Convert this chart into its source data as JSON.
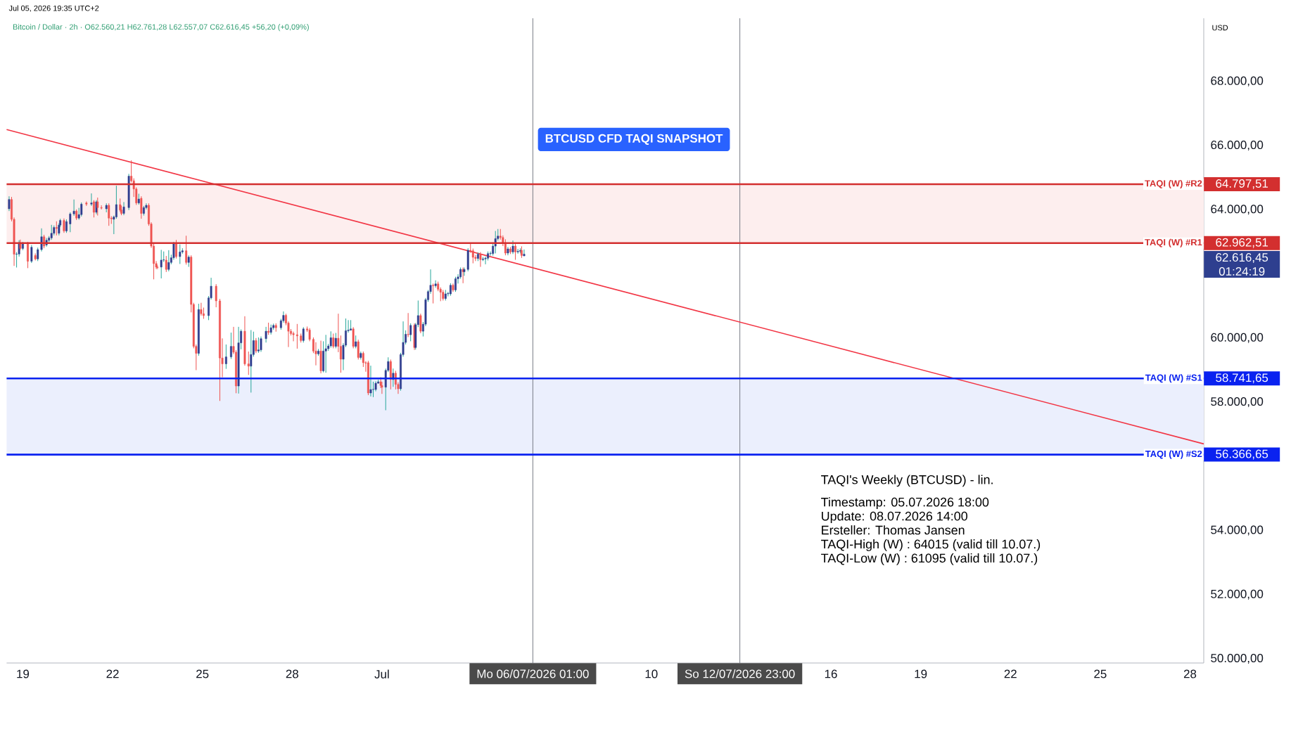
{
  "chart_data": {
    "type": "candlestick",
    "title": "Jul 05, 2026 19:35 UTC+2",
    "subtitle": "Bitcoin / Dollar · 2h · O62.560,21 H62.761,28 L62.557,07 C62.616,45 +56,20 (+0,09%)",
    "ylabel": "USD",
    "xlim": [
      "2026-06-18T11:00",
      "2026-07-28T11:00"
    ],
    "xticks": [
      {
        "value": "2026-06-19",
        "label": "19"
      },
      {
        "value": "2026-06-22",
        "label": "22"
      },
      {
        "value": "2026-06-25",
        "label": "25"
      },
      {
        "value": "2026-06-28",
        "label": "28"
      },
      {
        "value": "2026-07-01",
        "label": "Jul"
      },
      {
        "value": "2026-07-10",
        "label": "10"
      },
      {
        "value": "2026-07-16",
        "label": "16"
      },
      {
        "value": "2026-07-19",
        "label": "19"
      },
      {
        "value": "2026-07-22",
        "label": "22"
      },
      {
        "value": "2026-07-25",
        "label": "25"
      },
      {
        "value": "2026-07-28",
        "label": "28"
      }
    ],
    "ylim": [
      49870,
      69970
    ],
    "yticks": [
      {
        "value": 50000,
        "label": "50.000,00"
      },
      {
        "value": 52000,
        "label": "52.000,00"
      },
      {
        "value": 54000,
        "label": "54.000,00"
      },
      {
        "value": 58000,
        "label": "58.000,00"
      },
      {
        "value": 60000,
        "label": "60.000,00"
      },
      {
        "value": 64000,
        "label": "64.000,00"
      },
      {
        "value": 66000,
        "label": "66.000,00"
      },
      {
        "value": 68000,
        "label": "68.000,00"
      }
    ],
    "x": [
      "2026-06-18T13:00",
      "2026-06-18T15:00",
      "2026-06-18T17:00",
      "2026-06-18T19:00",
      "2026-06-18T21:00",
      "2026-06-18T22:00",
      "2026-06-19T00:00",
      "2026-06-19T04:00",
      "2026-06-19T07:00",
      "2026-06-19T10:00",
      "2026-06-19T12:00",
      "2026-06-19T15:00",
      "2026-06-19T17:00",
      "2026-06-19T19:00",
      "2026-06-19T21:00",
      "2026-06-19T23:00",
      "2026-06-20T01:00",
      "2026-06-20T03:00",
      "2026-06-20T05:00",
      "2026-06-20T06:00",
      "2026-06-20T09:00",
      "2026-06-20T11:00",
      "2026-06-20T14:00",
      "2026-06-20T17:00",
      "2026-06-20T19:00",
      "2026-06-20T21:00",
      "2026-06-20T23:00",
      "2026-06-21T03:00",
      "2026-06-21T07:00",
      "2026-06-21T09:00",
      "2026-06-21T11:00",
      "2026-06-21T12:00",
      "2026-06-21T15:00",
      "2026-06-21T19:00",
      "2026-06-21T21:00",
      "2026-06-21T23:00",
      "2026-06-22T01:00",
      "2026-06-22T03:00",
      "2026-06-22T06:00",
      "2026-06-22T07:00",
      "2026-06-22T09:00",
      "2026-06-22T13:00",
      "2026-06-22T15:00",
      "2026-06-22T17:00",
      "2026-06-22T19:00",
      "2026-06-22T21:00",
      "2026-06-22T23:00",
      "2026-06-23T01:00",
      "2026-06-23T03:00",
      "2026-06-23T05:00",
      "2026-06-23T07:00",
      "2026-06-23T09:00",
      "2026-06-23T11:00",
      "2026-06-23T12:00",
      "2026-06-23T15:00",
      "2026-06-23T17:00",
      "2026-06-23T19:00",
      "2026-06-23T21:00",
      "2026-06-23T23:00",
      "2026-06-24T01:00",
      "2026-06-24T03:00",
      "2026-06-24T06:00",
      "2026-06-24T08:00",
      "2026-06-24T11:00",
      "2026-06-24T13:00",
      "2026-06-24T15:00",
      "2026-06-24T17:00",
      "2026-06-24T19:00",
      "2026-06-24T21:00",
      "2026-06-24T23:00",
      "2026-06-25T01:00",
      "2026-06-25T05:00",
      "2026-06-25T07:00",
      "2026-06-25T11:00",
      "2026-06-25T14:00",
      "2026-06-25T16:00",
      "2026-06-25T19:00",
      "2026-06-25T23:00",
      "2026-06-26T01:00",
      "2026-06-26T03:00",
      "2026-06-26T05:00",
      "2026-06-26T07:00",
      "2026-06-26T10:00",
      "2026-06-26T13:00",
      "2026-06-26T15:00",
      "2026-06-26T17:00",
      "2026-06-26T19:00",
      "2026-06-26T21:00",
      "2026-06-26T23:00",
      "2026-06-27T03:00",
      "2026-06-27T05:00",
      "2026-06-27T07:00",
      "2026-06-27T09:00",
      "2026-06-27T11:00",
      "2026-06-27T15:00",
      "2026-06-27T17:00",
      "2026-06-27T19:00",
      "2026-06-27T21:00",
      "2026-06-27T23:00",
      "2026-06-28T01:00",
      "2026-06-28T04:00",
      "2026-06-28T07:00",
      "2026-06-28T09:00",
      "2026-06-28T12:00",
      "2026-06-28T14:00",
      "2026-06-28T17:00",
      "2026-06-28T19:00",
      "2026-06-28T21:00",
      "2026-06-28T23:00",
      "2026-06-29T01:00",
      "2026-06-29T03:00",
      "2026-06-29T05:00",
      "2026-06-29T07:00",
      "2026-06-29T09:00",
      "2026-06-29T11:00",
      "2026-06-29T13:00",
      "2026-06-29T15:00",
      "2026-06-29T17:00",
      "2026-06-29T19:00",
      "2026-06-29T21:00",
      "2026-06-29T23:00",
      "2026-06-30T01:00",
      "2026-06-30T03:00",
      "2026-06-30T05:00",
      "2026-06-30T07:00",
      "2026-06-30T09:00",
      "2026-06-30T11:00",
      "2026-06-30T13:00",
      "2026-06-30T15:00",
      "2026-06-30T17:00",
      "2026-06-30T19:00",
      "2026-06-30T21:00",
      "2026-06-30T23:00",
      "2026-07-01T00:00",
      "2026-07-01T03:00",
      "2026-07-01T05:00",
      "2026-07-01T07:00",
      "2026-07-01T09:00",
      "2026-07-01T11:00",
      "2026-07-01T13:00",
      "2026-07-01T15:00",
      "2026-07-01T17:00",
      "2026-07-01T19:00",
      "2026-07-01T21:00",
      "2026-07-01T23:00",
      "2026-07-02T02:00",
      "2026-07-02T03:00",
      "2026-07-02T05:00",
      "2026-07-02T07:00",
      "2026-07-02T09:00",
      "2026-07-02T11:00",
      "2026-07-02T13:00",
      "2026-07-02T15:00",
      "2026-07-02T17:00",
      "2026-07-02T19:00",
      "2026-07-02T21:00",
      "2026-07-02T23:00",
      "2026-07-03T01:00",
      "2026-07-03T03:00",
      "2026-07-03T05:00",
      "2026-07-03T07:00",
      "2026-07-03T09:00",
      "2026-07-03T11:00",
      "2026-07-03T13:00",
      "2026-07-03T15:00",
      "2026-07-03T17:00",
      "2026-07-03T18:00",
      "2026-07-03T21:00",
      "2026-07-03T23:00",
      "2026-07-04T01:00",
      "2026-07-04T03:00",
      "2026-07-04T05:00",
      "2026-07-04T07:00",
      "2026-07-04T09:00",
      "2026-07-04T11:00",
      "2026-07-04T13:00",
      "2026-07-04T15:00",
      "2026-07-04T17:00",
      "2026-07-04T19:00",
      "2026-07-04T21:00",
      "2026-07-04T23:00",
      "2026-07-05T01:00",
      "2026-07-05T03:00",
      "2026-07-05T05:00",
      "2026-07-05T07:00",
      "2026-07-05T09:00",
      "2026-07-05T11:00",
      "2026-07-05T13:00",
      "2026-07-05T15:00",
      "2026-07-05T16:00",
      "2026-07-05T18:00"
    ],
    "ohlc": [
      [
        64030,
        64420,
        63960,
        64321
      ],
      [
        64321,
        64400,
        63640,
        63703
      ],
      [
        63703,
        63760,
        62250,
        62613
      ],
      [
        62613,
        62680,
        62200,
        62620
      ],
      [
        62620,
        63050,
        62540,
        62976
      ],
      [
        62976,
        63070,
        62740,
        62794
      ],
      [
        62794,
        63000,
        62740,
        62940
      ],
      [
        62940,
        63000,
        62180,
        62394
      ],
      [
        62394,
        62900,
        62340,
        62831
      ],
      [
        62576,
        62640,
        62420,
        62467
      ],
      [
        62467,
        62820,
        62400,
        62758
      ],
      [
        62758,
        63420,
        62700,
        63158
      ],
      [
        63158,
        63220,
        62800,
        62867
      ],
      [
        62903,
        63120,
        62850,
        63049
      ],
      [
        63049,
        63180,
        62990,
        63122
      ],
      [
        63122,
        63530,
        63060,
        63267
      ],
      [
        63267,
        63510,
        63200,
        63448
      ],
      [
        63448,
        63640,
        63200,
        63420
      ],
      [
        63267,
        63580,
        63200,
        63521
      ],
      [
        63521,
        63720,
        63460,
        63667
      ],
      [
        63667,
        63730,
        63280,
        63339
      ],
      [
        63339,
        63700,
        63280,
        63630
      ],
      [
        63558,
        63920,
        63300,
        63870
      ],
      [
        63870,
        64320,
        63810,
        63958
      ],
      [
        63958,
        64010,
        63680,
        63740
      ],
      [
        63740,
        64060,
        63690,
        63849
      ],
      [
        63849,
        64230,
        63790,
        64176
      ],
      [
        64212,
        64260,
        64120,
        64176
      ],
      [
        64176,
        64510,
        64120,
        64212
      ],
      [
        64248,
        64300,
        63760,
        63921
      ],
      [
        63921,
        64300,
        63860,
        64248
      ],
      [
        64248,
        64380,
        63820,
        64067
      ],
      [
        64067,
        64140,
        64010,
        64050
      ],
      [
        64030,
        64200,
        63920,
        64139
      ],
      [
        64139,
        64200,
        63500,
        63740
      ],
      [
        63740,
        63800,
        63560,
        63720
      ],
      [
        63703,
        63820,
        63240,
        63776
      ],
      [
        63776,
        64750,
        63720,
        64161
      ],
      [
        64161,
        64350,
        63940,
        63994
      ],
      [
        63994,
        64130,
        63830,
        63885
      ],
      [
        63885,
        64240,
        63830,
        64088
      ],
      [
        64067,
        65120,
        63990,
        65048
      ],
      [
        65048,
        65540,
        64850,
        64903
      ],
      [
        64903,
        64980,
        64400,
        64648
      ],
      [
        64648,
        64700,
        64150,
        64212
      ],
      [
        64212,
        64500,
        64160,
        64335
      ],
      [
        64357,
        64420,
        63720,
        63885
      ],
      [
        63885,
        64120,
        63820,
        64067
      ],
      [
        64067,
        64200,
        64010,
        64139
      ],
      [
        64139,
        64200,
        63500,
        63558
      ],
      [
        63558,
        63610,
        62810,
        62867
      ],
      [
        62867,
        62940,
        61830,
        62322
      ],
      [
        62322,
        62400,
        62150,
        62213
      ],
      [
        62213,
        62270,
        62150,
        62200
      ],
      [
        62213,
        62750,
        61860,
        62431
      ],
      [
        62431,
        62700,
        62370,
        62440
      ],
      [
        62431,
        62560,
        62060,
        62140
      ],
      [
        62140,
        62740,
        62080,
        62358
      ],
      [
        62358,
        62600,
        62300,
        62504
      ],
      [
        62504,
        63000,
        62440,
        62940
      ],
      [
        62940,
        63060,
        62480,
        62540
      ],
      [
        62540,
        62920,
        62310,
        62685
      ],
      [
        62685,
        62800,
        62630,
        62722
      ],
      [
        62722,
        63190,
        62290,
        62358
      ],
      [
        62358,
        62580,
        62220,
        62525
      ],
      [
        62525,
        62580,
        60800,
        61049
      ],
      [
        61049,
        61100,
        59680,
        59741
      ],
      [
        59741,
        59800,
        59000,
        59523
      ],
      [
        59523,
        61070,
        59450,
        60890
      ],
      [
        60890,
        61100,
        60700,
        60759
      ],
      [
        60759,
        60950,
        60600,
        60700
      ],
      [
        60700,
        61310,
        60560,
        61253
      ],
      [
        61253,
        61880,
        61200,
        61617
      ],
      [
        61617,
        61680,
        60960,
        61159
      ],
      [
        61159,
        61220,
        58040,
        59378
      ],
      [
        59378,
        59990,
        58780,
        59196
      ],
      [
        59196,
        59800,
        59040,
        59414
      ],
      [
        59414,
        60170,
        59350,
        59741
      ],
      [
        59741,
        60350,
        59500,
        59559
      ],
      [
        59559,
        59620,
        58280,
        58505
      ],
      [
        58505,
        60350,
        58270,
        59850
      ],
      [
        59850,
        60270,
        59650,
        60214
      ],
      [
        60214,
        60680,
        59140,
        59196
      ],
      [
        59196,
        59580,
        58850,
        59124
      ],
      [
        59124,
        60250,
        58300,
        59487
      ],
      [
        59487,
        60200,
        59420,
        59923
      ],
      [
        59923,
        60000,
        59530,
        59596
      ],
      [
        59596,
        60020,
        59540,
        59632
      ],
      [
        59632,
        60050,
        59570,
        59981
      ],
      [
        59981,
        60350,
        59860,
        60214
      ],
      [
        60213,
        60480,
        60100,
        60177
      ],
      [
        60177,
        60420,
        60110,
        60322
      ],
      [
        60322,
        60450,
        60260,
        60395
      ],
      [
        60395,
        60460,
        60200,
        60322
      ],
      [
        60322,
        60600,
        60260,
        60541
      ],
      [
        60541,
        60830,
        60480,
        60708
      ],
      [
        60708,
        60760,
        60400,
        60468
      ],
      [
        60468,
        60520,
        59720,
        60213
      ],
      [
        60213,
        60280,
        60080,
        60141
      ],
      [
        60141,
        60200,
        59900,
        60104
      ],
      [
        60104,
        60440,
        59670,
        60068
      ],
      [
        60068,
        60140,
        59860,
        59923
      ],
      [
        59923,
        60340,
        59860,
        60286
      ],
      [
        60286,
        60360,
        60190,
        60250
      ],
      [
        60250,
        60310,
        59900,
        59959
      ],
      [
        59959,
        60020,
        59530,
        59595
      ],
      [
        59595,
        59870,
        59150,
        59508
      ],
      [
        59508,
        59660,
        59450,
        59595
      ],
      [
        59595,
        59920,
        58900,
        58978
      ],
      [
        58978,
        59900,
        58930,
        59595
      ],
      [
        59595,
        60100,
        58920,
        59668
      ],
      [
        59668,
        59820,
        59600,
        59755
      ],
      [
        59755,
        60210,
        59700,
        60010
      ],
      [
        60010,
        60140,
        59680,
        59741
      ],
      [
        59741,
        60160,
        59680,
        59995
      ],
      [
        59995,
        60760,
        59560,
        59741
      ],
      [
        59741,
        60080,
        58920,
        59341
      ],
      [
        59341,
        59840,
        59000,
        59777
      ],
      [
        59777,
        60610,
        59720,
        60228
      ],
      [
        60228,
        60560,
        60170,
        60250
      ],
      [
        60250,
        60560,
        60230,
        60286
      ],
      [
        60286,
        60340,
        59680,
        59741
      ],
      [
        59741,
        60080,
        59680,
        59886
      ],
      [
        59886,
        59950,
        59330,
        59392
      ],
      [
        59392,
        59580,
        59330,
        59523
      ],
      [
        59523,
        59580,
        59100,
        59232
      ],
      [
        59232,
        59280,
        58950,
        59220
      ],
      [
        59232,
        59290,
        58220,
        58287
      ],
      [
        58287,
        59140,
        58180,
        58396
      ],
      [
        58396,
        58640,
        58160,
        58400
      ],
      [
        58396,
        58650,
        58340,
        58592
      ],
      [
        58592,
        58700,
        58580,
        58636
      ],
      [
        58636,
        58780,
        58440,
        58520
      ],
      [
        58520,
        58640,
        58260,
        58469
      ],
      [
        58469,
        59050,
        57750,
        58992
      ],
      [
        58992,
        59400,
        58940,
        59268
      ],
      [
        59268,
        59330,
        58400,
        58709
      ],
      [
        58709,
        59050,
        58480,
        58905
      ],
      [
        58905,
        58980,
        58400,
        58556
      ],
      [
        58556,
        58620,
        58260,
        58418
      ],
      [
        58418,
        59540,
        58360,
        59486
      ],
      [
        59486,
        60520,
        59420,
        59864
      ],
      [
        59864,
        60240,
        59800,
        60119
      ],
      [
        60119,
        60780,
        60030,
        60104
      ],
      [
        60104,
        60460,
        59900,
        60395
      ],
      [
        60395,
        60460,
        59630,
        59705
      ],
      [
        59705,
        60470,
        59640,
        60417
      ],
      [
        60417,
        61170,
        60340,
        60701
      ],
      [
        60701,
        60760,
        60150,
        60213
      ],
      [
        60213,
        60500,
        60050,
        60432
      ],
      [
        60432,
        61250,
        60370,
        61195
      ],
      [
        61195,
        61500,
        61130,
        61449
      ],
      [
        61449,
        62140,
        61380,
        61646
      ],
      [
        61646,
        61700,
        61080,
        61631
      ],
      [
        61631,
        61800,
        61570,
        61689
      ],
      [
        61689,
        61760,
        61460,
        61522
      ],
      [
        61522,
        61580,
        61150,
        61428
      ],
      [
        61428,
        61500,
        61170,
        61231
      ],
      [
        61231,
        61500,
        61170,
        61377
      ],
      [
        61377,
        61440,
        61300,
        61390
      ],
      [
        61377,
        61710,
        61320,
        61646
      ],
      [
        61646,
        61700,
        61440,
        61500
      ],
      [
        61500,
        61910,
        61440,
        61849
      ],
      [
        61849,
        61990,
        61700,
        61907
      ],
      [
        61907,
        62200,
        61850,
        62140
      ],
      [
        62140,
        62200,
        61710,
        62067
      ],
      [
        62067,
        62200,
        61940,
        62140
      ],
      [
        62140,
        62800,
        62080,
        62736
      ],
      [
        62736,
        62940,
        62660,
        62722
      ],
      [
        62722,
        62790,
        62330,
        62518
      ],
      [
        62518,
        62590,
        62400,
        62482
      ],
      [
        62482,
        62670,
        62400,
        62613
      ],
      [
        62613,
        62680,
        62220,
        62445
      ],
      [
        62445,
        62530,
        62400,
        62467
      ],
      [
        62467,
        62540,
        62300,
        62489
      ],
      [
        62489,
        62700,
        62420,
        62634
      ],
      [
        62634,
        62700,
        62570,
        62640
      ],
      [
        62634,
        62980,
        62570,
        62867
      ],
      [
        62867,
        63340,
        62640,
        63100
      ],
      [
        63100,
        63400,
        63040,
        63180
      ],
      [
        63180,
        63400,
        63070,
        63136
      ],
      [
        63136,
        63200,
        62870,
        62976
      ],
      [
        62976,
        63080,
        62580,
        62649
      ],
      [
        62649,
        62840,
        62580,
        62780
      ],
      [
        62780,
        62840,
        62620,
        62685
      ],
      [
        62685,
        63040,
        62620,
        62867
      ],
      [
        62867,
        62930,
        62440,
        62685
      ],
      [
        62685,
        62780,
        62630,
        62707
      ],
      [
        62707,
        62800,
        62640,
        62736
      ],
      [
        62736,
        62860,
        62500,
        62576
      ],
      [
        62560.21,
        62761.28,
        62557.07,
        62616.45
      ]
    ],
    "series": [
      {
        "type": "line",
        "color": "#f23645",
        "x": [
          "2026-06-18T11:00",
          "2026-07-28T11:00"
        ],
        "values": [
          66500,
          56700
        ]
      }
    ],
    "bands": [
      {
        "axis": "y",
        "from": 62962.51,
        "to": 64797.51,
        "color": "#fdeeee"
      },
      {
        "axis": "y",
        "from": 56366.65,
        "to": 58741.65,
        "color": "#ebeffd"
      }
    ],
    "ref_lines": [
      {
        "axis": "y",
        "value": 64797.51,
        "label": "TAQI (W) #R2",
        "color": "#d32f2f"
      },
      {
        "axis": "y",
        "value": 62962.51,
        "label": "TAQI (W) #R1",
        "color": "#d32f2f"
      },
      {
        "axis": "y",
        "value": 58741.65,
        "label": "TAQI (W) #S1",
        "color": "#0a22f0"
      },
      {
        "axis": "y",
        "value": 56366.65,
        "label": "TAQI (W) #S2",
        "color": "#0a22f0"
      },
      {
        "axis": "x",
        "value": "2026-07-06T01:00",
        "label": "Mo 06/07/2026 01:00",
        "color": "#6a6d78"
      },
      {
        "axis": "x",
        "value": "2026-07-12T23:00",
        "label": "So 12/07/2026 23:00",
        "color": "#6a6d78"
      }
    ],
    "annotations": [
      "BTCUSD CFD TAQI SNAPSHOT",
      "TAQI's Weekly (BTCUSD) - lin.",
      "Timestamp: 05.07.2026 18:00",
      "Update: 08.07.2026 14:00",
      "Ersteller: Thomas Jansen",
      "TAQI-High (W) : 64015 (valid till 10.07.)",
      "TAQI-Low (W) : 61095 (valid till 10.07.)",
      "64.797,51",
      "62.962,51",
      "58.741,65",
      "56.366,65",
      "62.616,45",
      "01:24:19"
    ]
  }
}
